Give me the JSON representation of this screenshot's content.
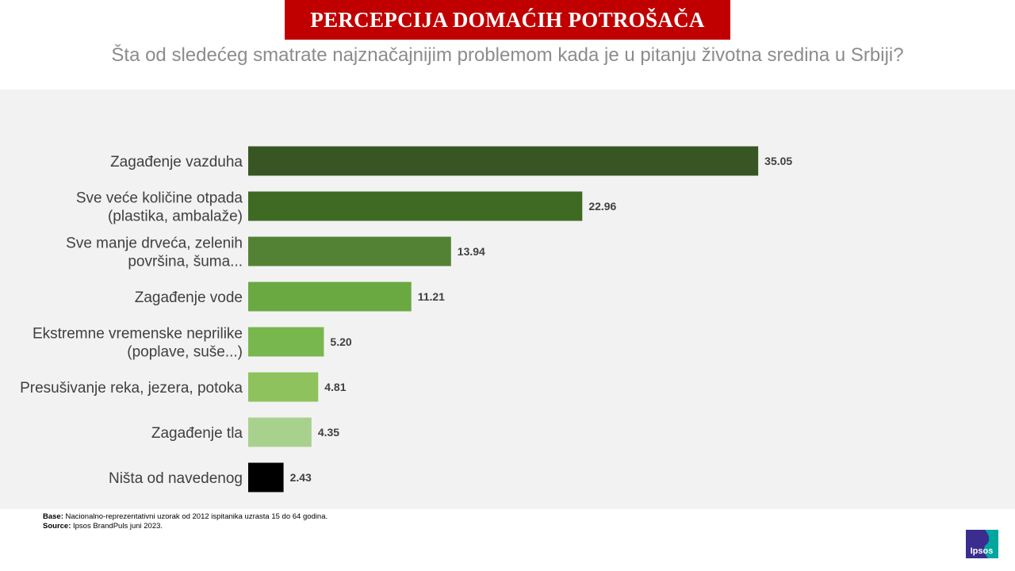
{
  "header": {
    "title": "PERCEPCIJA DOMAĆIH POTROŠAČA",
    "subtitle": "Šta od sledećeg smatrate najznačajnijim problemom kada je u pitanju životna sredina u Srbiji?"
  },
  "chart_data": {
    "type": "bar",
    "orientation": "horizontal",
    "title": "",
    "xlabel": "",
    "ylabel": "",
    "grid": false,
    "legend": "none",
    "xlim": [
      0,
      36
    ],
    "categories": [
      [
        "Zagađenje vazduha"
      ],
      [
        "Sve veće količine otpada",
        "(plastika, ambalaže)"
      ],
      [
        "Sve manje drveća, zelenih",
        "površina, šuma..."
      ],
      [
        "Zagađenje vode"
      ],
      [
        "Ekstremne vremenske neprilike",
        "(poplave, suše...)"
      ],
      [
        "Presušivanje reka, jezera, potoka"
      ],
      [
        "Zagađenje tla"
      ],
      [
        "Ništa od navedenog"
      ]
    ],
    "values": [
      35.05,
      22.96,
      13.94,
      11.21,
      5.2,
      4.81,
      4.35,
      2.43
    ],
    "value_labels": [
      "35.05",
      "22.96",
      "13.94",
      "11.21",
      "5.20",
      "4.81",
      "4.35",
      "2.43"
    ],
    "colors": [
      "#375623",
      "#3f6a24",
      "#548235",
      "#6aa842",
      "#78b74d",
      "#8dc25c",
      "#a9d18e",
      "#000000"
    ]
  },
  "footnote": {
    "base_label": "Base:",
    "base_text": " Nacionalno-reprezentativni uzorak od 2012 ispitanika uzrasta 15 do 64 godina.",
    "source_label": "Source:",
    "source_text": " Ipsos BrandPuls juni 2023."
  },
  "logo": {
    "text": "Ipsos",
    "colors": [
      "#3b2d8f",
      "#00a6a0"
    ]
  }
}
